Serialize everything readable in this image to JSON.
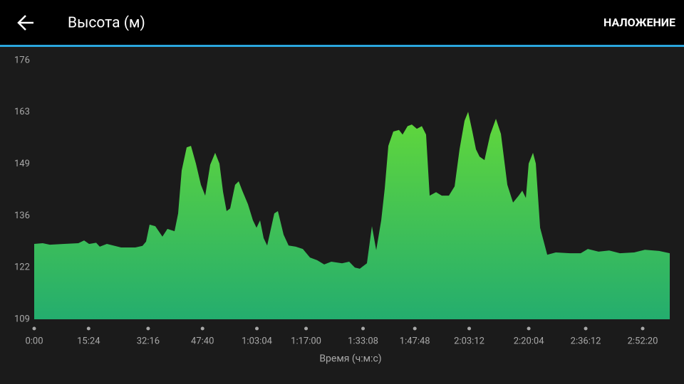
{
  "header": {
    "title": "Высота (м)",
    "action": "НАЛОЖЕНИЕ"
  },
  "chart_data": {
    "type": "area",
    "x_label": "Время (ч:м:с)",
    "color_top": "#62d83a",
    "color_bottom": "#24ad6e",
    "xlim": [
      0,
      10800
    ],
    "ylim": [
      109,
      176
    ],
    "yticks": [
      109,
      {
        "value": 122.4,
        "label": "122"
      },
      {
        "value": 135.8,
        "label": "136"
      },
      {
        "value": 149.2,
        "label": "149"
      },
      {
        "value": 162.6,
        "label": "163"
      },
      176
    ],
    "xticks": [
      {
        "value": 0,
        "label": "0:00"
      },
      {
        "value": 924,
        "label": "15:24"
      },
      {
        "value": 1936,
        "label": "32:16"
      },
      {
        "value": 2860,
        "label": "47:40"
      },
      {
        "value": 3784,
        "label": "1:03:04"
      },
      {
        "value": 4620,
        "label": "1:17:00"
      },
      {
        "value": 5588,
        "label": "1:33:08"
      },
      {
        "value": 6468,
        "label": "1:47:48"
      },
      {
        "value": 7392,
        "label": "2:03:12"
      },
      {
        "value": 8404,
        "label": "2:20:04"
      },
      {
        "value": 9372,
        "label": "2:36:12"
      },
      {
        "value": 10340,
        "label": "2:52:20"
      }
    ],
    "x": [
      0,
      145,
      266,
      509,
      751,
      848,
      932,
      1053,
      1114,
      1235,
      1477,
      1719,
      1840,
      1901,
      1961,
      2058,
      2179,
      2264,
      2385,
      2446,
      2506,
      2591,
      2664,
      2748,
      2833,
      2906,
      2991,
      3075,
      3148,
      3209,
      3269,
      3330,
      3414,
      3475,
      3536,
      3632,
      3717,
      3778,
      3838,
      3899,
      3959,
      4080,
      4141,
      4238,
      4323,
      4444,
      4565,
      4686,
      4807,
      4928,
      5049,
      5231,
      5352,
      5449,
      5533,
      5654,
      5739,
      5812,
      5897,
      5957,
      6018,
      6102,
      6199,
      6260,
      6345,
      6417,
      6502,
      6587,
      6659,
      6720,
      6829,
      6926,
      7047,
      7144,
      7228,
      7313,
      7374,
      7446,
      7507,
      7568,
      7652,
      7749,
      7846,
      7931,
      8040,
      8137,
      8233,
      8294,
      8355,
      8403,
      8476,
      8524,
      8597,
      8718,
      8863,
      9105,
      9287,
      9408,
      9590,
      9771,
      9953,
      10195,
      10377,
      10619,
      10800
    ],
    "values": [
      128.5,
      128.7,
      128.3,
      128.5,
      128.7,
      129.4,
      128.5,
      128.8,
      127.8,
      128.5,
      127.6,
      127.6,
      128,
      129.1,
      133.5,
      133.1,
      130.4,
      132.4,
      131.8,
      136.4,
      147.5,
      153.5,
      153.9,
      149.3,
      143.8,
      141,
      149,
      152.1,
      149.3,
      142,
      137,
      137.7,
      143.8,
      144.7,
      142.3,
      138.8,
      134.6,
      132.7,
      134.6,
      130,
      128.1,
      136.4,
      137,
      130.9,
      128.1,
      127.8,
      127.2,
      125,
      124.3,
      123.2,
      123.9,
      123.5,
      123.9,
      122.4,
      122.1,
      123.5,
      133.1,
      126.9,
      134.6,
      142.9,
      153.9,
      157.6,
      158,
      156.8,
      159,
      159.4,
      158.3,
      159,
      156.8,
      141,
      141.9,
      141,
      141,
      143.4,
      153,
      160.4,
      162.7,
      157.6,
      153,
      151.1,
      150.2,
      156.8,
      160.9,
      157,
      143.8,
      139.2,
      141,
      142.3,
      140.4,
      149.3,
      152.1,
      149.3,
      132.7,
      125.7,
      126.3,
      126.1,
      126.1,
      127.2,
      126.5,
      126.8,
      126.1,
      126.3,
      127,
      126.7,
      126.1
    ]
  }
}
